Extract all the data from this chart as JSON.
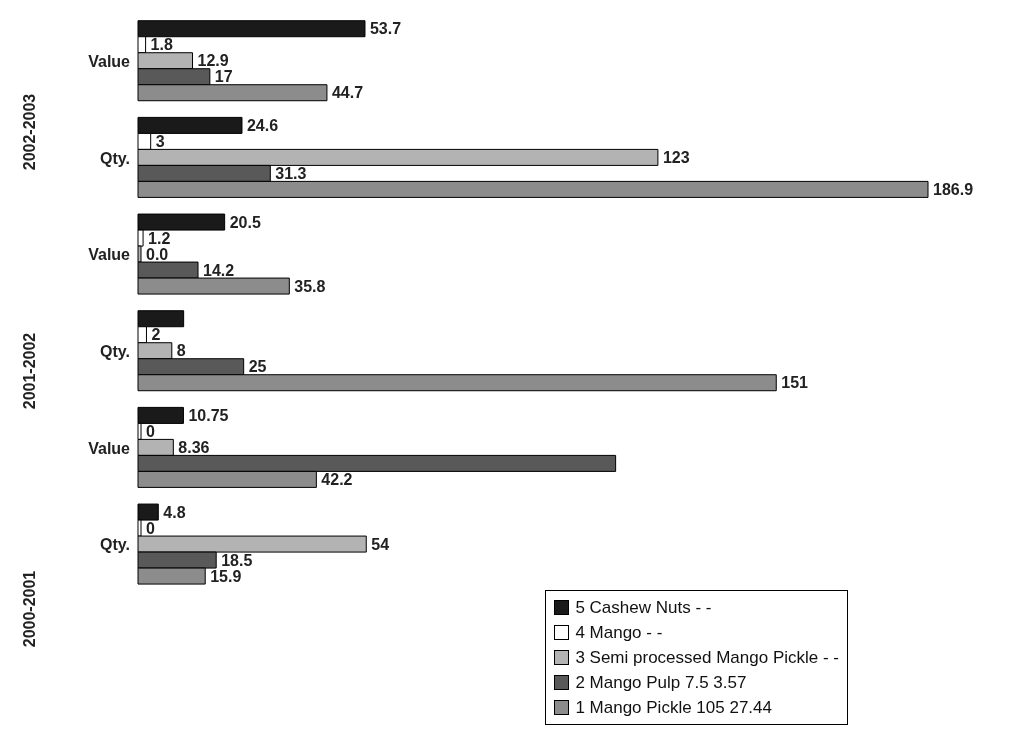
{
  "chart_data": {
    "type": "bar",
    "orientation": "horizontal",
    "categories": [
      "Value",
      "Qty.",
      "Value",
      "Qty.",
      "Value",
      "Qty."
    ],
    "annotations": [
      "2002-2003",
      "2001-2002",
      "2000-2001"
    ],
    "series": [
      {
        "name": "5 Cashew Nuts - -",
        "color": "#1a1a1a",
        "values": [
          53.7,
          24.6,
          20.5,
          10.8,
          10.75,
          4.8
        ],
        "value_labels": [
          "53.7",
          "24.6",
          "20.5",
          null,
          "10.75",
          "4.8"
        ]
      },
      {
        "name": "4 Mango - -",
        "color": "#ffffff",
        "values": [
          1.8,
          3,
          1.2,
          2,
          0,
          0
        ],
        "value_labels": [
          "1.8",
          "3",
          "1.2",
          "2",
          "0",
          "0"
        ]
      },
      {
        "name": "3 Semi processed Mango Pickle - -",
        "color": "#b3b3b3",
        "values": [
          12.9,
          123,
          0,
          8,
          8.36,
          54
        ],
        "value_labels": [
          "12.9",
          "123",
          "0.0",
          "8",
          "8.36",
          "54"
        ]
      },
      {
        "name": "2 Mango Pulp 7.5 3.57",
        "color": "#595959",
        "values": [
          17,
          31.3,
          14.2,
          25,
          113,
          18.5
        ],
        "value_labels": [
          "17",
          "31.3",
          "14.2",
          "25",
          null,
          "18.5"
        ]
      },
      {
        "name": "1 Mango Pickle 105 27.44",
        "color": "#8c8c8c",
        "values": [
          44.7,
          186.9,
          35.8,
          151,
          42.2,
          15.9
        ],
        "value_labels": [
          "44.7",
          "186.9",
          "35.8",
          "151",
          "42.2",
          "15.9"
        ]
      }
    ],
    "tick_labels": "y",
    "legend": "bottom right",
    "grid": false
  }
}
